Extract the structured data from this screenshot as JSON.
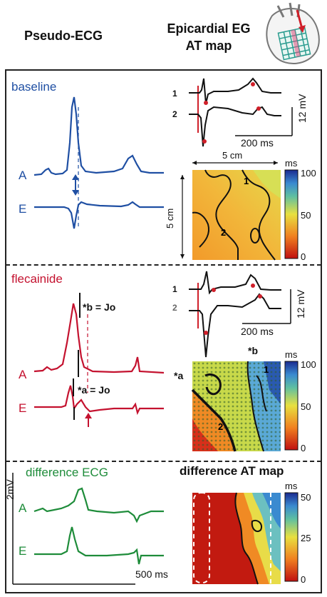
{
  "headers": {
    "pseudo_ecg": "Pseudo-ECG",
    "epicardial_line1": "Epicardial EG",
    "epicardial_line2": "AT map"
  },
  "baseline": {
    "title": "baseline",
    "lead_a": "A",
    "lead_e": "E",
    "eg_label_1": "1",
    "eg_label_2": "2",
    "scale_time": "200 ms",
    "scale_volt": "12 mV",
    "map_width": "5 cm",
    "map_height": "5 cm",
    "map_unit": "ms",
    "colorbar_ticks": [
      "100",
      "50",
      "0"
    ],
    "map_site_1": "1",
    "map_site_2": "2"
  },
  "flecainide": {
    "title": "flecainide",
    "lead_a": "A",
    "lead_e": "E",
    "annot_b": "*b = Jo",
    "annot_a": "*a = Jo",
    "eg_label_1": "1",
    "eg_label_2": "2",
    "scale_time": "200 ms",
    "scale_volt": "12 mV",
    "star_b": "*b",
    "star_a": "*a",
    "map_unit": "ms",
    "colorbar_ticks": [
      "100",
      "50",
      "0"
    ],
    "map_site_1": "1",
    "map_site_2": "2"
  },
  "difference": {
    "title": "difference ECG",
    "map_title": "difference AT map",
    "lead_a": "A",
    "lead_e": "E",
    "scale_volt": "2mV",
    "scale_time": "500 ms",
    "map_unit": "ms",
    "colorbar_ticks": [
      "50",
      "25",
      "0"
    ]
  },
  "colors": {
    "baseline": "#1f4fa3",
    "flecainide": "#c4122f",
    "difference": "#1e8c3a",
    "eg_marker": "#d0202a"
  }
}
